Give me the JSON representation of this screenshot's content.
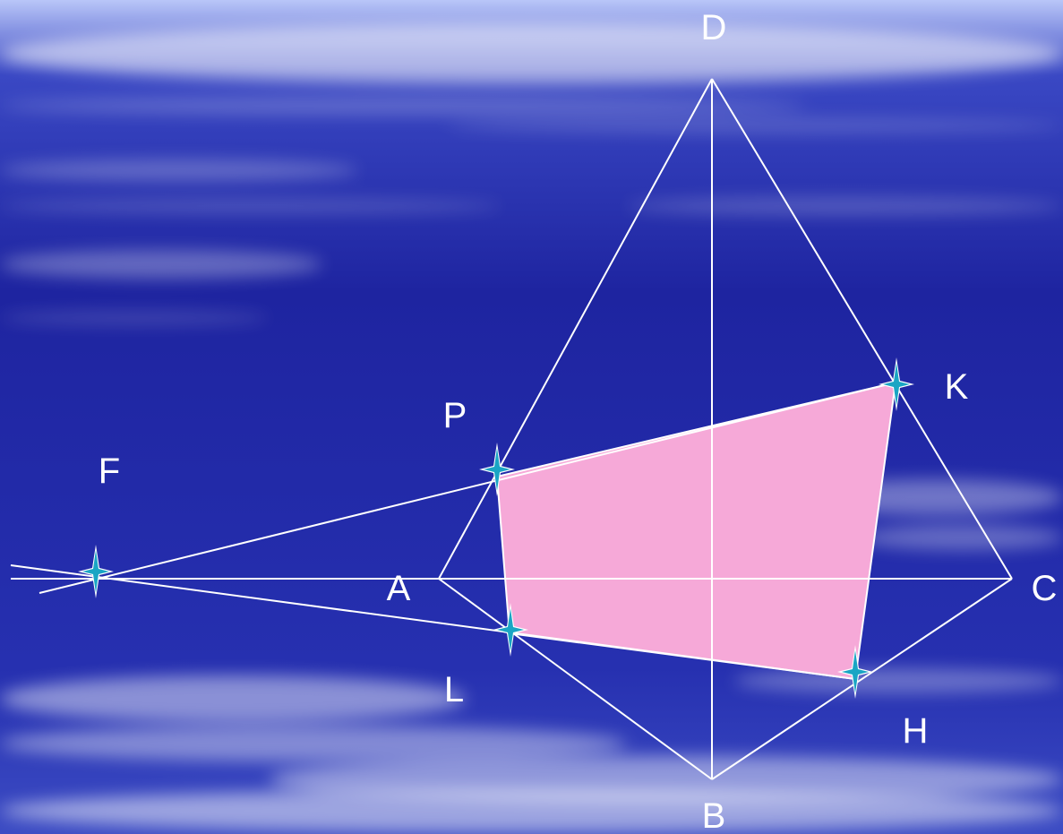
{
  "diagram": {
    "background": {
      "top_color": "#b9c6f8",
      "mid_color": "#3a48c4",
      "deep_color": "#1e24a0",
      "cloud_color": "#ffffff"
    },
    "line_color": "#ffffff",
    "section_fill": "#f6a9d8",
    "marker_color": "#1aa5c4",
    "marker_icon": "four-point-star-icon",
    "labels": {
      "D": "D",
      "K": "K",
      "P": "P",
      "F": "F",
      "A": "A",
      "C": "C",
      "L": "L",
      "H": "H",
      "B": "B"
    }
  }
}
